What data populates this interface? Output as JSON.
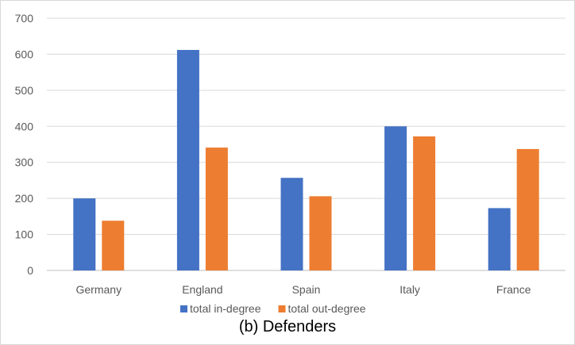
{
  "chart_data": {
    "type": "bar",
    "caption": "(b) Defenders",
    "categories": [
      "Germany",
      "England",
      "Spain",
      "Italy",
      "France"
    ],
    "series": [
      {
        "name": "total in-degree",
        "color": "#4472C4",
        "values": [
          200,
          612,
          257,
          400,
          173
        ]
      },
      {
        "name": "total out-degree",
        "color": "#ED7D31",
        "values": [
          138,
          341,
          206,
          372,
          337
        ]
      }
    ],
    "ylim": [
      0,
      700
    ],
    "yticks": [
      0,
      100,
      200,
      300,
      400,
      500,
      600,
      700
    ],
    "grid": true,
    "legend": "bottom"
  }
}
